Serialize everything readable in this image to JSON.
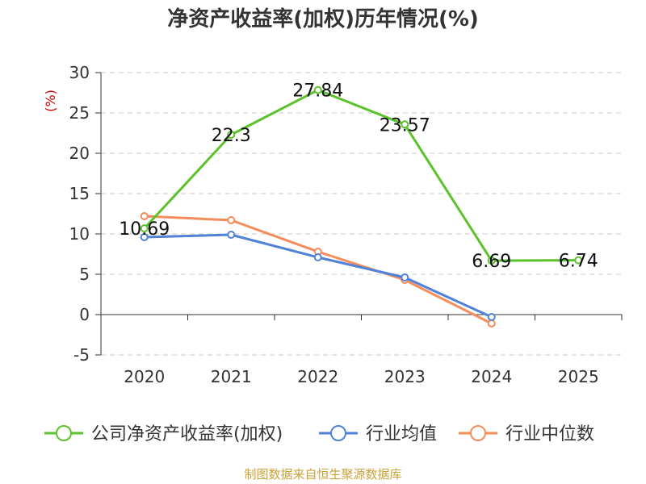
{
  "chart_data": {
    "type": "line",
    "title": "净资产收益率(加权)历年情况(%)",
    "ylabel": "(%)",
    "categories": [
      "2020",
      "2021",
      "2022",
      "2023",
      "2024",
      "2025"
    ],
    "y_ticks": [
      "30",
      "25",
      "20",
      "15",
      "10",
      "5",
      "0",
      "-5"
    ],
    "ylim": [
      -5,
      30
    ],
    "grid": true,
    "legend": "bottom",
    "series": [
      {
        "name": "公司净资产收益率(加权)",
        "color": "#5cc22b",
        "values": [
          10.69,
          22.3,
          27.84,
          23.57,
          6.69,
          6.74
        ],
        "labels": [
          "10.69",
          "22.3",
          "27.84",
          "23.57",
          "6.69",
          "6.74"
        ]
      },
      {
        "name": "行业均值",
        "color": "#4f82d8",
        "values": [
          9.6,
          9.9,
          7.1,
          4.6,
          -0.3,
          null
        ],
        "labels": []
      },
      {
        "name": "行业中位数",
        "color": "#f58c5a",
        "values": [
          12.2,
          11.7,
          7.8,
          4.3,
          -1.1,
          null
        ],
        "labels": []
      }
    ],
    "source": "制图数据来自恒生聚源数据库"
  }
}
